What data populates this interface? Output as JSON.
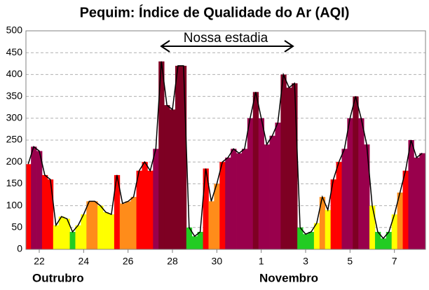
{
  "chart_data": {
    "type": "aqi-area",
    "title": "Pequim: Índice de Qualidade do Ar (AQI)",
    "annotation": "Nossa estadia",
    "month_labels": [
      "Outrubro",
      "Novembro"
    ],
    "x": [
      21.5,
      21.75,
      22,
      22.25,
      22.5,
      22.75,
      23,
      23.25,
      23.5,
      23.75,
      24,
      24.25,
      24.5,
      24.75,
      25,
      25.25,
      25.5,
      25.75,
      26,
      26.25,
      26.5,
      26.75,
      27,
      27.25,
      27.5,
      27.75,
      28,
      28.25,
      28.5,
      28.75,
      29,
      29.25,
      29.5,
      29.75,
      30,
      30.25,
      30.5,
      30.75,
      31,
      31.25,
      31.5,
      31.75,
      32,
      32.25,
      32.5,
      32.75,
      33,
      33.25,
      33.5,
      33.75,
      34,
      34.25,
      34.5,
      34.75,
      35,
      35.25,
      35.5,
      35.75,
      36,
      36.25,
      36.5,
      36.75,
      37,
      37.25,
      37.5,
      37.75,
      38,
      38.25,
      38.5,
      38.75,
      39,
      39.25
    ],
    "values": [
      195,
      235,
      225,
      170,
      160,
      55,
      75,
      70,
      40,
      55,
      80,
      110,
      110,
      100,
      85,
      80,
      170,
      105,
      110,
      120,
      180,
      200,
      180,
      230,
      430,
      330,
      320,
      420,
      420,
      50,
      30,
      40,
      185,
      110,
      150,
      200,
      210,
      230,
      220,
      230,
      300,
      360,
      300,
      240,
      260,
      290,
      400,
      370,
      380,
      50,
      35,
      40,
      60,
      120,
      90,
      160,
      200,
      230,
      300,
      350,
      300,
      240,
      100,
      40,
      25,
      40,
      80,
      130,
      180,
      250,
      210,
      220
    ],
    "line_color": "#000000",
    "color_scale": [
      {
        "max": 50,
        "color": "#22cc22"
      },
      {
        "max": 100,
        "color": "#ffff00"
      },
      {
        "max": 150,
        "color": "#ff8c1a"
      },
      {
        "max": 200,
        "color": "#ff0000"
      },
      {
        "max": 300,
        "color": "#99004c"
      },
      {
        "max": 500,
        "color": "#7e0023"
      }
    ],
    "xlim": [
      21.4,
      39.4
    ],
    "xticks": [
      22,
      24,
      26,
      28,
      30,
      {
        "value": 32,
        "label": "1"
      },
      {
        "value": 34,
        "label": "3"
      },
      {
        "value": 36,
        "label": "5"
      },
      {
        "value": 38,
        "label": "7"
      }
    ],
    "ylim": [
      0,
      500
    ],
    "yticks": [
      0,
      50,
      100,
      150,
      200,
      250,
      300,
      350,
      400,
      450,
      500
    ],
    "grid": true
  }
}
